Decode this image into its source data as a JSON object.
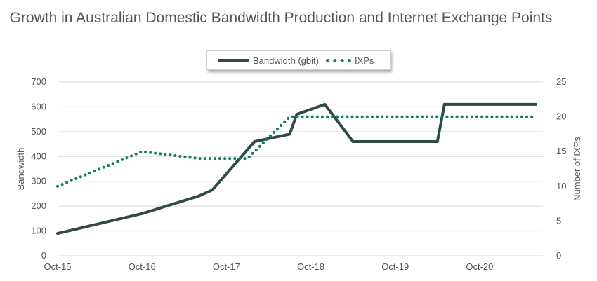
{
  "chart_data": {
    "type": "line",
    "title": "Growth in Australian Domestic Bandwidth Production and Internet Exchange Points",
    "ylabel": "Bandwidth",
    "y2label": "Number of IXPs",
    "ylim": [
      0,
      700
    ],
    "y2lim": [
      0,
      25
    ],
    "yticks": [
      "0",
      "100",
      "200",
      "300",
      "400",
      "500",
      "600",
      "700"
    ],
    "y2ticks": [
      "0",
      "5",
      "10",
      "15",
      "20",
      "25"
    ],
    "xticks": [
      "Oct-15",
      "Oct-16",
      "Oct-17",
      "Oct-18",
      "Oct-19",
      "Oct-20"
    ],
    "xrange_months": 69,
    "grid": true,
    "legend": "top-center",
    "series": [
      {
        "name": "Bandwidth (gbit)",
        "axis": "left",
        "style": "solid",
        "color": "#2f4b48",
        "points": [
          {
            "x": "Oct-15",
            "y": 90
          },
          {
            "x": "Oct-16",
            "y": 170
          },
          {
            "x": "Jun-17",
            "y": 240
          },
          {
            "x": "Aug-17",
            "y": 265
          },
          {
            "x": "Feb-18",
            "y": 460
          },
          {
            "x": "Jul-18",
            "y": 490
          },
          {
            "x": "Aug-18",
            "y": 570
          },
          {
            "x": "Dec-18",
            "y": 610
          },
          {
            "x": "Apr-19",
            "y": 460
          },
          {
            "x": "Oct-19",
            "y": 460
          },
          {
            "x": "Apr-20",
            "y": 460
          },
          {
            "x": "May-20",
            "y": 610
          },
          {
            "x": "Oct-20",
            "y": 610
          },
          {
            "x": "Jun-21",
            "y": 610
          }
        ]
      },
      {
        "name": "IXPs",
        "axis": "right",
        "style": "dotted",
        "color": "#117a6a",
        "points": [
          {
            "x": "Oct-15",
            "y": 10
          },
          {
            "x": "Oct-16",
            "y": 15
          },
          {
            "x": "Jun-17",
            "y": 14
          },
          {
            "x": "Jan-18",
            "y": 14
          },
          {
            "x": "Jul-18",
            "y": 20
          },
          {
            "x": "Oct-18",
            "y": 20
          },
          {
            "x": "Oct-19",
            "y": 20
          },
          {
            "x": "Oct-20",
            "y": 20
          },
          {
            "x": "Jun-21",
            "y": 20
          }
        ]
      }
    ]
  }
}
